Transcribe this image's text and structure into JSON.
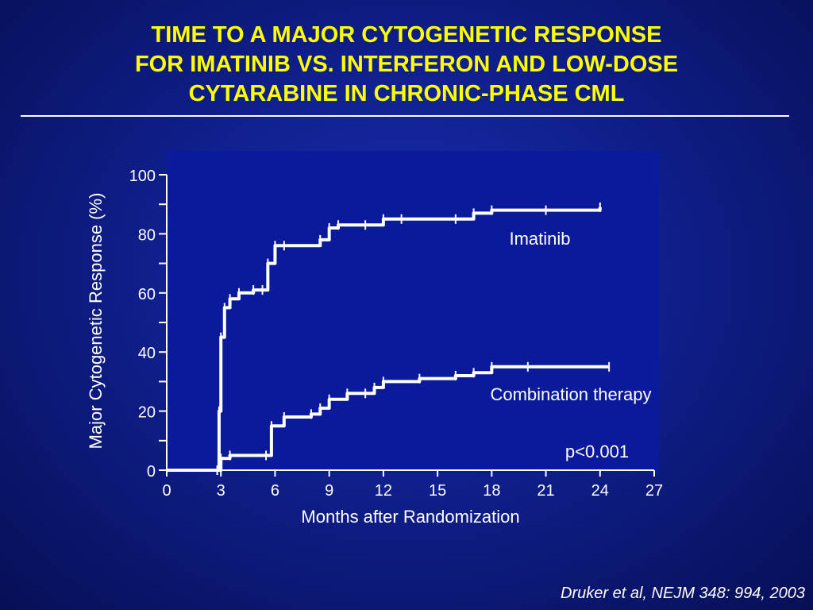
{
  "slide": {
    "title_lines": [
      "TIME TO A MAJOR CYTOGENETIC RESPONSE",
      "FOR IMATINIB VS. INTERFERON AND LOW-DOSE",
      "CYTARABINE IN CHRONIC-PHASE CML"
    ],
    "citation": "Druker et al, NEJM 348: 994, 2003"
  },
  "colors": {
    "background": "#0f1f8c",
    "plot_area": "#0a1a9a",
    "title": "#ffff00",
    "text": "#ffffff",
    "series": "#ffffff"
  },
  "chart_data": {
    "type": "line",
    "title": "",
    "xlabel": "Months after Randomization",
    "ylabel": "Major Cytogenetic Response (%)",
    "xlim": [
      0,
      27
    ],
    "ylim": [
      0,
      100
    ],
    "x_ticks": [
      0,
      3,
      6,
      9,
      12,
      15,
      18,
      21,
      24,
      27
    ],
    "y_ticks": [
      0,
      20,
      40,
      60,
      80,
      100
    ],
    "grid": false,
    "legend": "inline labels",
    "annotation": "p<0.001",
    "series": [
      {
        "name": "Imatinib",
        "step": true,
        "x": [
          0,
          2.8,
          2.9,
          3.0,
          3.2,
          3.5,
          4.0,
          4.8,
          5.3,
          5.6,
          6.0,
          6.5,
          8.5,
          9.0,
          9.5,
          11.0,
          12.0,
          13.0,
          16.0,
          17.0,
          18.0,
          21.0,
          24.0
        ],
        "y": [
          0,
          0,
          20,
          45,
          55,
          58,
          60,
          61,
          61,
          70,
          76,
          76,
          78,
          82,
          83,
          83,
          85,
          85,
          85,
          87,
          88,
          88,
          89
        ]
      },
      {
        "name": "Combination therapy",
        "step": true,
        "x": [
          0,
          2.8,
          3.0,
          3.5,
          5.5,
          5.8,
          6.5,
          8.0,
          8.5,
          9.0,
          10.0,
          11.0,
          11.5,
          12.0,
          14.0,
          16.0,
          17.0,
          18.0,
          20.0,
          24.5
        ],
        "y": [
          0,
          0,
          4,
          5,
          5,
          15,
          18,
          19,
          21,
          24,
          26,
          26,
          28,
          30,
          31,
          32,
          33,
          35,
          35,
          35
        ]
      }
    ]
  }
}
